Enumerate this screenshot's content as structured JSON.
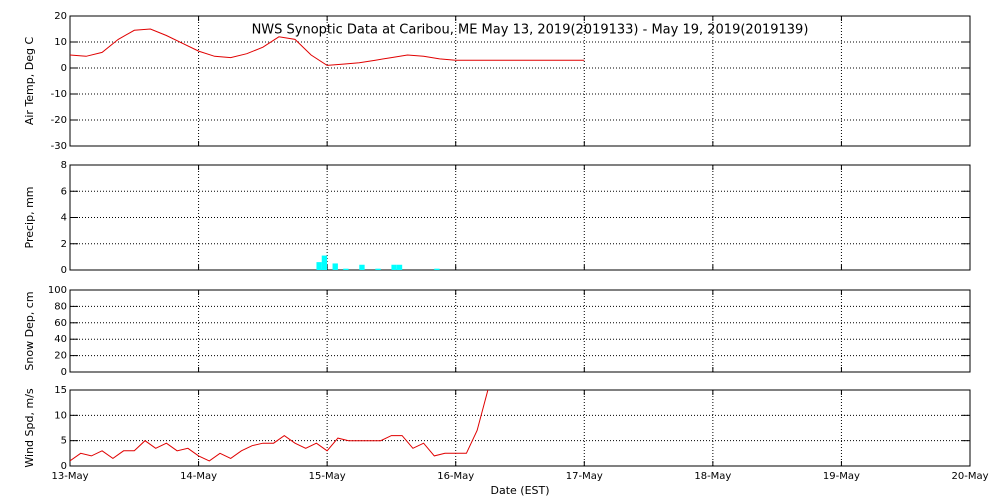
{
  "chart_data": [
    {
      "type": "line",
      "title": "NWS Synoptic Data at Caribou, ME   May 13, 2019(2019133) - May 19, 2019(2019139)",
      "ylabel": "Air Temp, Deg C",
      "ylim": [
        -30,
        20
      ],
      "yticks": [
        -30,
        -20,
        -10,
        0,
        10,
        20
      ],
      "grid": true,
      "series": [
        {
          "color": "#e00000",
          "x": [
            133,
            133.125,
            133.25,
            133.375,
            133.5,
            133.625,
            133.75,
            133.875,
            134,
            134.125,
            134.25,
            134.375,
            134.5,
            134.625,
            134.75,
            134.875,
            135,
            135.125,
            135.25,
            135.375,
            135.5,
            135.625,
            135.75,
            135.875,
            136,
            136.125,
            136.25,
            136.375,
            136.5,
            136.625,
            136.75,
            136.875,
            137
          ],
          "values": [
            5,
            4.5,
            6,
            11,
            14.5,
            15,
            12.5,
            9.5,
            6.5,
            4.5,
            4,
            5.5,
            8,
            12,
            11,
            5,
            1,
            1.5,
            2,
            3,
            4,
            5,
            4.5,
            3.5,
            3,
            3,
            3,
            3,
            3,
            3,
            3,
            3,
            3
          ]
        }
      ]
    },
    {
      "type": "bar",
      "ylabel": "Precip, mm",
      "ylim": [
        0,
        8
      ],
      "yticks": [
        0,
        2,
        4,
        6,
        8
      ],
      "grid": true,
      "color": "#00ffff",
      "x": [
        134.917,
        134.958,
        135.042,
        135.125,
        135.25,
        135.375,
        135.5,
        135.542,
        135.833
      ],
      "values": [
        0.6,
        1.1,
        0.5,
        0.1,
        0.4,
        0.1,
        0.4,
        0.4,
        0.1
      ]
    },
    {
      "type": "line",
      "ylabel": "Snow Dep, cm",
      "ylim": [
        0,
        100
      ],
      "yticks": [
        0,
        20,
        40,
        60,
        80,
        100
      ],
      "grid": true
    },
    {
      "type": "line",
      "ylabel": "Wind Spd, m/s",
      "ylim": [
        0,
        15
      ],
      "yticks": [
        0,
        5,
        10,
        15
      ],
      "grid": true,
      "xlabel": "Date (EST)",
      "xlim": [
        133,
        140
      ],
      "xticks": [
        {
          "value": 133,
          "label": "13-May"
        },
        {
          "value": 134,
          "label": "14-May"
        },
        {
          "value": 135,
          "label": "15-May"
        },
        {
          "value": 136,
          "label": "16-May"
        },
        {
          "value": 137,
          "label": "17-May"
        },
        {
          "value": 138,
          "label": "18-May"
        },
        {
          "value": 139,
          "label": "19-May"
        },
        {
          "value": 140,
          "label": "20-May"
        }
      ],
      "series": [
        {
          "color": "#e00000",
          "x": [
            133,
            133.0833,
            133.1667,
            133.25,
            133.3333,
            133.4167,
            133.5,
            133.5833,
            133.6667,
            133.75,
            133.8333,
            133.9167,
            134,
            134.0833,
            134.1667,
            134.25,
            134.3333,
            134.4167,
            134.5,
            134.5833,
            134.6667,
            134.75,
            134.8333,
            134.9167,
            135,
            135.0833,
            135.1667,
            135.25,
            135.3333,
            135.4167,
            135.5,
            135.5833,
            135.6667,
            135.75,
            135.8333,
            135.9167,
            136,
            136.0833,
            136.1667,
            136.25
          ],
          "values": [
            1,
            2.5,
            2,
            3,
            1.5,
            3,
            3,
            5,
            3.5,
            4.5,
            3,
            3.5,
            2,
            1,
            2.5,
            1.5,
            3,
            4,
            4.5,
            4.5,
            6,
            4.5,
            3.5,
            4.5,
            3,
            5.5,
            5,
            5,
            5,
            5,
            6,
            6,
            3.5,
            4.5,
            2,
            2.5,
            2.5,
            2.5,
            7,
            15
          ]
        }
      ]
    }
  ]
}
